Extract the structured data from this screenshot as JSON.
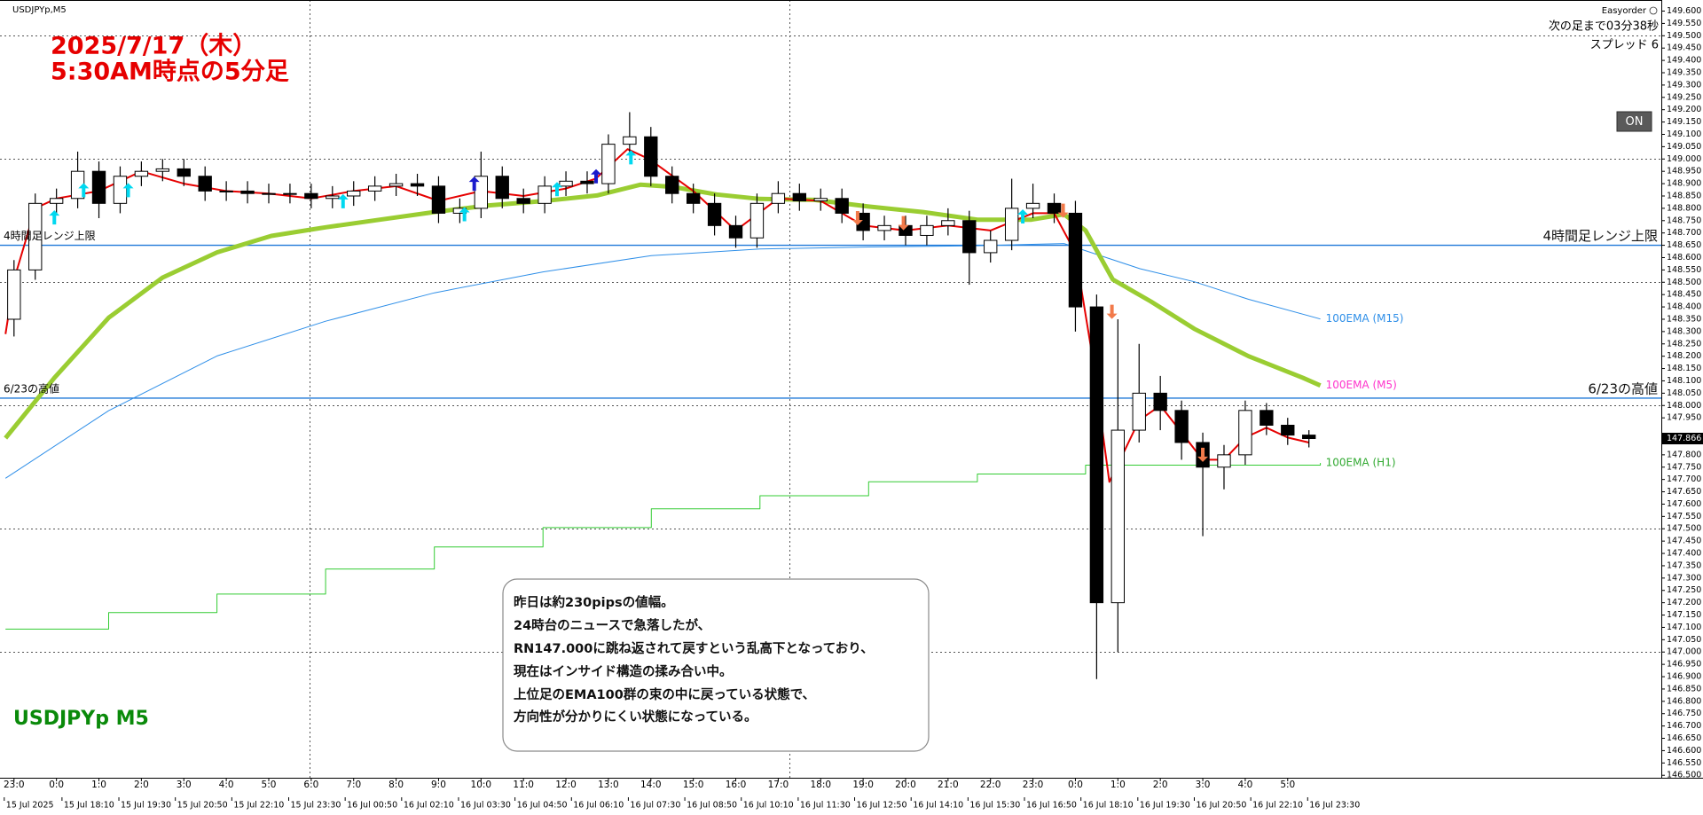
{
  "chart_data": {
    "type": "candlestick",
    "symbol_label": "USDJPYp,M5",
    "title": "2025/7/17（木）",
    "subtitle": "5:30AM時点の5分足",
    "watermark": "USDJPYp M5",
    "x": [
      0,
      0.5,
      1,
      1.5,
      2,
      2.5,
      3,
      3.5,
      4,
      4.5,
      5,
      5.5,
      6,
      6.5,
      7,
      7.5,
      8,
      8.5,
      9,
      9.5,
      10,
      10.5,
      11,
      11.5,
      12,
      12.5,
      13,
      13.5,
      14,
      14.5,
      15,
      15.5,
      16,
      16.5,
      17,
      17.5,
      18,
      18.5,
      19,
      19.5,
      20,
      20.5,
      21,
      21.5,
      22,
      22.5,
      23,
      23.5,
      24,
      24.5,
      25,
      25.5,
      26,
      26.5,
      27,
      27.5,
      28,
      28.5,
      29,
      29.5,
      30,
      30.5
    ],
    "open": [
      148.35,
      148.55,
      148.82,
      148.84,
      148.95,
      148.82,
      148.93,
      148.95,
      148.96,
      148.93,
      148.87,
      148.87,
      148.86,
      148.86,
      148.86,
      148.84,
      148.85,
      148.87,
      148.89,
      148.9,
      148.89,
      148.78,
      148.8,
      148.93,
      148.84,
      148.82,
      148.89,
      148.91,
      148.9,
      149.06,
      149.09,
      148.93,
      148.86,
      148.82,
      148.73,
      148.68,
      148.82,
      148.86,
      148.83,
      148.84,
      148.78,
      148.71,
      148.73,
      148.69,
      148.73,
      148.75,
      148.62,
      148.67,
      148.8,
      148.82,
      148.78,
      148.4,
      147.2,
      147.9,
      148.05,
      147.98,
      147.85,
      147.75,
      147.8,
      147.98,
      147.92,
      147.88
    ],
    "high": [
      148.59,
      148.86,
      148.88,
      149.03,
      148.99,
      148.97,
      148.99,
      149.0,
      149.0,
      148.97,
      148.91,
      148.91,
      148.9,
      148.9,
      148.9,
      148.89,
      148.91,
      148.93,
      148.94,
      148.94,
      148.93,
      148.84,
      149.03,
      148.97,
      148.88,
      148.93,
      148.95,
      148.95,
      149.1,
      149.19,
      149.13,
      148.97,
      148.9,
      148.86,
      148.77,
      148.86,
      148.91,
      148.9,
      148.88,
      148.88,
      148.82,
      148.77,
      148.77,
      148.77,
      148.8,
      148.79,
      148.71,
      148.92,
      148.9,
      148.86,
      148.83,
      148.45,
      148.35,
      148.25,
      148.12,
      148.02,
      147.89,
      147.84,
      148.02,
      148.01,
      147.95,
      147.9
    ],
    "low": [
      148.28,
      148.51,
      148.78,
      148.8,
      148.76,
      148.78,
      148.89,
      148.91,
      148.89,
      148.83,
      148.83,
      148.82,
      148.82,
      148.82,
      148.8,
      148.8,
      148.81,
      148.83,
      148.85,
      148.85,
      148.74,
      148.74,
      148.76,
      148.8,
      148.78,
      148.78,
      148.85,
      148.86,
      148.86,
      149.02,
      148.89,
      148.82,
      148.78,
      148.69,
      148.64,
      148.64,
      148.78,
      148.79,
      148.79,
      148.74,
      148.67,
      148.67,
      148.65,
      148.65,
      148.69,
      148.49,
      148.58,
      148.63,
      148.76,
      148.74,
      148.3,
      146.89,
      147.0,
      147.85,
      147.9,
      147.78,
      147.47,
      147.66,
      147.76,
      147.88,
      147.84,
      147.83
    ],
    "close": [
      148.55,
      148.82,
      148.84,
      148.95,
      148.82,
      148.93,
      148.95,
      148.96,
      148.93,
      148.87,
      148.87,
      148.86,
      148.86,
      148.86,
      148.84,
      148.85,
      148.87,
      148.89,
      148.9,
      148.89,
      148.78,
      148.8,
      148.93,
      148.84,
      148.82,
      148.89,
      148.91,
      148.9,
      149.06,
      149.09,
      148.93,
      148.86,
      148.82,
      148.73,
      148.68,
      148.82,
      148.86,
      148.83,
      148.84,
      148.78,
      148.71,
      148.73,
      148.69,
      148.73,
      148.75,
      148.62,
      148.67,
      148.8,
      148.82,
      148.78,
      148.4,
      147.2,
      147.9,
      148.05,
      147.98,
      147.85,
      147.75,
      147.8,
      147.98,
      147.92,
      147.88,
      147.866
    ],
    "bull_color": "#ffffff",
    "bear_color": "#000000",
    "series": [
      {
        "name": "100EMA (M15)",
        "color": "#2f8fe8",
        "label_color": "#2f8fe8",
        "width": 1,
        "x": [
          -0.2,
          2.23,
          4.78,
          7.34,
          9.9,
          12.46,
          15.01,
          17.57,
          20.13,
          22.69,
          24.73,
          26.52,
          27.8,
          29.08,
          30.77
        ],
        "values": [
          147.705,
          147.979,
          148.201,
          148.342,
          148.457,
          148.542,
          148.608,
          148.635,
          148.643,
          148.648,
          148.657,
          148.555,
          148.502,
          148.431,
          148.351
        ]
      },
      {
        "name": "100EMA (M5)",
        "color": "#9acd32",
        "label_color": "#ff33cc",
        "width": 5,
        "x": [
          -0.2,
          0.95,
          2.23,
          3.5,
          4.78,
          6.06,
          7.34,
          8.62,
          9.9,
          11.18,
          12.46,
          13.73,
          14.76,
          15.52,
          16.55,
          17.57,
          18.85,
          20.13,
          21.41,
          22.69,
          23.96,
          24.73,
          25.24,
          25.88,
          26.78,
          27.8,
          29.08,
          30.36,
          30.77
        ],
        "values": [
          147.868,
          148.112,
          148.356,
          148.519,
          148.621,
          148.688,
          148.723,
          148.754,
          148.785,
          148.812,
          148.829,
          148.852,
          148.896,
          148.887,
          148.856,
          148.838,
          148.834,
          148.807,
          148.785,
          148.754,
          148.754,
          148.776,
          148.71,
          148.511,
          148.422,
          148.311,
          148.2,
          148.112,
          148.081
        ]
      },
      {
        "name": "100EMA (H1)",
        "color": "#33cc33",
        "label_color": "#33aa33",
        "width": 1,
        "step": true,
        "x": [
          -0.2,
          2.23,
          4.78,
          7.34,
          9.9,
          12.46,
          15.01,
          17.57,
          20.13,
          22.69,
          25.24,
          30.77
        ],
        "values": [
          147.093,
          147.16,
          147.235,
          147.337,
          147.426,
          147.505,
          147.581,
          147.634,
          147.691,
          147.722,
          147.758,
          147.767
        ]
      },
      {
        "color": "#e60000",
        "width": 2,
        "x": [
          -0.2,
          0,
          0.5,
          1,
          2,
          3,
          4,
          5,
          6,
          7,
          8,
          9,
          10,
          11,
          12,
          13,
          13.7,
          14.45,
          14.96,
          16,
          17,
          18,
          19,
          20,
          21,
          22,
          23,
          24,
          24.5,
          25,
          25.4,
          25.8,
          26,
          26.5,
          27,
          27.5,
          28,
          28.5,
          29,
          29.5,
          30,
          30.5
        ],
        "values": [
          148.29,
          148.51,
          148.8,
          148.84,
          148.87,
          148.95,
          148.9,
          148.87,
          148.86,
          148.84,
          148.87,
          148.89,
          148.83,
          148.87,
          148.85,
          148.88,
          148.92,
          149.04,
          149.0,
          148.87,
          148.71,
          148.84,
          148.83,
          148.73,
          148.71,
          148.73,
          148.71,
          148.78,
          148.78,
          148.62,
          148.2,
          147.69,
          147.76,
          147.94,
          148.0,
          147.89,
          147.78,
          147.78,
          147.87,
          147.91,
          147.87,
          147.85
        ]
      }
    ],
    "signals": [
      {
        "direction": "up",
        "color": "#00d8f0",
        "x": [
          0.95,
          1.64,
          2.69,
          7.75,
          10.61,
          12.79,
          14.53,
          23.76
        ],
        "y": [
          148.763,
          148.874,
          148.874,
          148.829,
          148.776,
          148.878,
          149.007,
          148.767
        ]
      },
      {
        "direction": "up",
        "color": "#1a1acc",
        "x": [
          10.84,
          13.71
        ],
        "y": [
          148.9,
          148.93
        ]
      },
      {
        "direction": "down",
        "color": "#f27a4a",
        "x": [
          19.87,
          20.95,
          24.71,
          25.86,
          28.0
        ],
        "y": [
          148.76,
          148.74,
          148.79,
          148.38,
          147.8
        ]
      }
    ],
    "hlines": [
      {
        "value": 148.65,
        "label": "4時間足レンジ上限",
        "color": "#1e78d8"
      },
      {
        "value": 148.03,
        "label": "6/23の高値",
        "color": "#1e78d8"
      }
    ],
    "last_price": 147.866,
    "xlim": [
      -0.33,
      38.8
    ],
    "ylim": [
      146.49,
      149.645
    ],
    "ygrid": [
      149.5,
      149,
      148.5,
      148,
      147.5,
      147
    ],
    "xgrid": [
      6.96,
      18.26
    ],
    "yticks": [
      {
        "value": 146.5,
        "label": "146.500"
      },
      {
        "value": 146.55,
        "label": "146.550"
      },
      {
        "value": 146.6,
        "label": "146.600"
      },
      {
        "value": 146.65,
        "label": "146.650"
      },
      {
        "value": 146.7,
        "label": "146.700"
      },
      {
        "value": 146.75,
        "label": "146.750"
      },
      {
        "value": 146.8,
        "label": "146.800"
      },
      {
        "value": 146.85,
        "label": "146.850"
      },
      {
        "value": 146.9,
        "label": "146.900"
      },
      {
        "value": 146.95,
        "label": "146.950"
      },
      {
        "value": 147,
        "label": "147.000"
      },
      {
        "value": 147.05,
        "label": "147.050"
      },
      {
        "value": 147.1,
        "label": "147.100"
      },
      {
        "value": 147.15,
        "label": "147.150"
      },
      {
        "value": 147.2,
        "label": "147.200"
      },
      {
        "value": 147.25,
        "label": "147.250"
      },
      {
        "value": 147.3,
        "label": "147.300"
      },
      {
        "value": 147.35,
        "label": "147.350"
      },
      {
        "value": 147.4,
        "label": "147.400"
      },
      {
        "value": 147.45,
        "label": "147.450"
      },
      {
        "value": 147.5,
        "label": "147.500"
      },
      {
        "value": 147.55,
        "label": "147.550"
      },
      {
        "value": 147.6,
        "label": "147.600"
      },
      {
        "value": 147.65,
        "label": "147.650"
      },
      {
        "value": 147.7,
        "label": "147.700"
      },
      {
        "value": 147.75,
        "label": "147.750"
      },
      {
        "value": 147.8,
        "label": "147.800"
      },
      {
        "value": 147.95,
        "label": "147.950"
      },
      {
        "value": 148,
        "label": "148.000"
      },
      {
        "value": 148.05,
        "label": "148.050"
      },
      {
        "value": 148.1,
        "label": "148.100"
      },
      {
        "value": 148.15,
        "label": "148.150"
      },
      {
        "value": 148.2,
        "label": "148.200"
      },
      {
        "value": 148.25,
        "label": "148.250"
      },
      {
        "value": 148.3,
        "label": "148.300"
      },
      {
        "value": 148.35,
        "label": "148.350"
      },
      {
        "value": 148.4,
        "label": "148.400"
      },
      {
        "value": 148.45,
        "label": "148.450"
      },
      {
        "value": 148.5,
        "label": "148.500"
      },
      {
        "value": 148.55,
        "label": "148.550"
      },
      {
        "value": 148.6,
        "label": "148.600"
      },
      {
        "value": 148.65,
        "label": "148.650"
      },
      {
        "value": 148.7,
        "label": "148.700"
      },
      {
        "value": 148.75,
        "label": "148.750"
      },
      {
        "value": 148.8,
        "label": "148.800"
      },
      {
        "value": 148.85,
        "label": "148.850"
      },
      {
        "value": 148.9,
        "label": "148.900"
      },
      {
        "value": 148.95,
        "label": "148.950"
      },
      {
        "value": 149,
        "label": "149.000"
      },
      {
        "value": 149.05,
        "label": "149.050"
      },
      {
        "value": 149.1,
        "label": "149.100"
      },
      {
        "value": 149.15,
        "label": "149.150"
      },
      {
        "value": 149.2,
        "label": "149.200"
      },
      {
        "value": 149.25,
        "label": "149.250"
      },
      {
        "value": 149.3,
        "label": "149.300"
      },
      {
        "value": 149.35,
        "label": "149.350"
      },
      {
        "value": 149.4,
        "label": "149.400"
      },
      {
        "value": 149.45,
        "label": "149.450"
      },
      {
        "value": 149.5,
        "label": "149.500"
      },
      {
        "value": 149.55,
        "label": "149.550"
      },
      {
        "value": 149.6,
        "label": "149.600"
      }
    ],
    "xticks": [
      {
        "value": 0,
        "label": "23:0"
      },
      {
        "value": 1,
        "label": "0:0"
      },
      {
        "value": 2,
        "label": "1:0"
      },
      {
        "value": 3,
        "label": "2:0"
      },
      {
        "value": 4,
        "label": "3:0"
      },
      {
        "value": 5,
        "label": "4:0"
      },
      {
        "value": 6,
        "label": "5:0"
      },
      {
        "value": 7,
        "label": "6:0"
      },
      {
        "value": 8,
        "label": "7:0"
      },
      {
        "value": 9,
        "label": "8:0"
      },
      {
        "value": 10,
        "label": "9:0"
      },
      {
        "value": 11,
        "label": "10:0"
      },
      {
        "value": 12,
        "label": "11:0"
      },
      {
        "value": 13,
        "label": "12:0"
      },
      {
        "value": 14,
        "label": "13:0"
      },
      {
        "value": 15,
        "label": "14:0"
      },
      {
        "value": 16,
        "label": "15:0"
      },
      {
        "value": 17,
        "label": "16:0"
      },
      {
        "value": 18,
        "label": "17:0"
      },
      {
        "value": 19,
        "label": "18:0"
      },
      {
        "value": 20,
        "label": "19:0"
      },
      {
        "value": 21,
        "label": "20:0"
      },
      {
        "value": 22,
        "label": "21:0"
      },
      {
        "value": 23,
        "label": "22:0"
      },
      {
        "value": 24,
        "label": "23:0"
      },
      {
        "value": 25,
        "label": "0:0"
      },
      {
        "value": 26,
        "label": "1:0"
      },
      {
        "value": 27,
        "label": "2:0"
      },
      {
        "value": 28,
        "label": "3:0"
      },
      {
        "value": 29,
        "label": "4:0"
      },
      {
        "value": 30,
        "label": "5:0"
      }
    ],
    "xticks_server": [
      {
        "value": -0.23,
        "label": "15 Jul 2025"
      },
      {
        "value": 1.13,
        "label": "15 Jul 18:10"
      },
      {
        "value": 2.47,
        "label": "15 Jul 19:30"
      },
      {
        "value": 3.8,
        "label": "15 Jul 20:50"
      },
      {
        "value": 5.13,
        "label": "15 Jul 22:10"
      },
      {
        "value": 6.47,
        "label": "15 Jul 23:30"
      },
      {
        "value": 7.8,
        "label": "16 Jul 00:50"
      },
      {
        "value": 9.13,
        "label": "16 Jul 02:10"
      },
      {
        "value": 10.47,
        "label": "16 Jul 03:30"
      },
      {
        "value": 11.8,
        "label": "16 Jul 04:50"
      },
      {
        "value": 13.13,
        "label": "16 Jul 06:10"
      },
      {
        "value": 14.47,
        "label": "16 Jul 07:30"
      },
      {
        "value": 15.8,
        "label": "16 Jul 08:50"
      },
      {
        "value": 17.13,
        "label": "16 Jul 10:10"
      },
      {
        "value": 18.47,
        "label": "16 Jul 11:30"
      },
      {
        "value": 19.8,
        "label": "16 Jul 12:50"
      },
      {
        "value": 21.13,
        "label": "16 Jul 14:10"
      },
      {
        "value": 22.47,
        "label": "16 Jul 15:30"
      },
      {
        "value": 23.8,
        "label": "16 Jul 16:50"
      },
      {
        "value": 25.13,
        "label": "16 Jul 18:10"
      },
      {
        "value": 26.47,
        "label": "16 Jul 19:30"
      },
      {
        "value": 27.8,
        "label": "16 Jul 20:50"
      },
      {
        "value": 29.13,
        "label": "16 Jul 22:10"
      },
      {
        "value": 30.47,
        "label": "16 Jul 23:30"
      }
    ],
    "annotation": [
      "昨日は約230pipsの値幅。",
      "24時台のニュースで急落したが、",
      "RN147.000に跳ね返されて戻すという乱高下となっており、",
      "現在はインサイド構造の揉み合い中。",
      "上位足のEMA100群の束の中に戻っている状態で、",
      "方向性が分かりにくい状態になっている。"
    ]
  },
  "panel": {
    "easyorder": "Easyorder",
    "countdown": "次の足まで03分38秒",
    "spread": "スプレッド 6",
    "button": "ON"
  }
}
